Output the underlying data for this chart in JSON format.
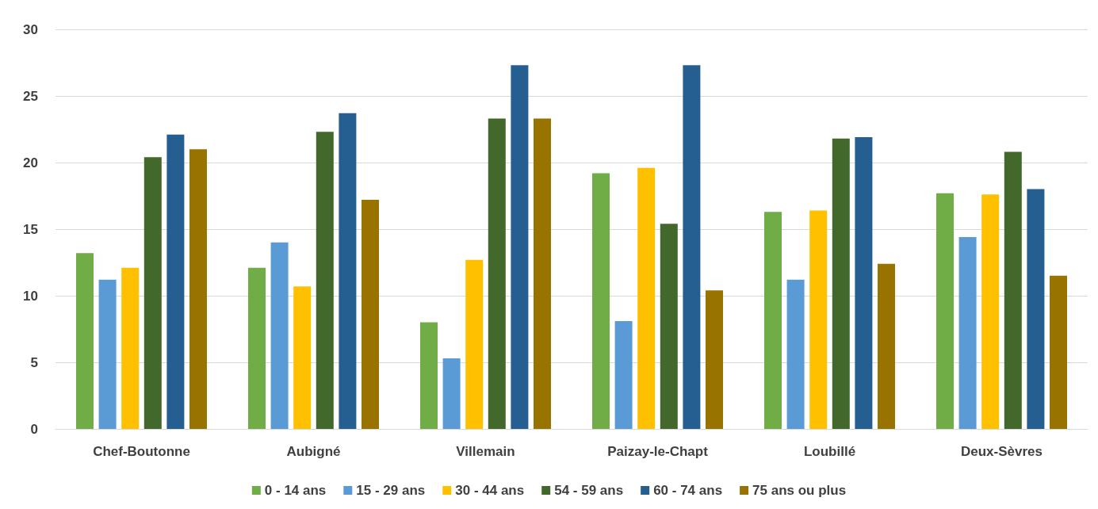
{
  "chart_data": {
    "type": "bar",
    "categories": [
      "Chef-Boutonne",
      "Aubigné",
      "Villemain",
      "Paizay-le-Chapt",
      "Loubillé",
      "Deux-Sèvres"
    ],
    "series": [
      {
        "name": "0 - 14 ans",
        "color": "#70ad47",
        "values": [
          13.2,
          12.1,
          8.0,
          19.2,
          16.3,
          17.7
        ]
      },
      {
        "name": "15 - 29 ans",
        "color": "#5b9bd5",
        "values": [
          11.2,
          14.0,
          5.3,
          8.1,
          11.2,
          14.4
        ]
      },
      {
        "name": "30 - 44 ans",
        "color": "#ffc000",
        "values": [
          12.1,
          10.7,
          12.7,
          19.6,
          16.4,
          17.6
        ]
      },
      {
        "name": "54 - 59 ans",
        "color": "#43682b",
        "values": [
          20.4,
          22.3,
          23.3,
          15.4,
          21.8,
          20.8
        ]
      },
      {
        "name": "60 - 74 ans",
        "color": "#255e91",
        "values": [
          22.1,
          23.7,
          27.3,
          27.3,
          21.9,
          18.0
        ]
      },
      {
        "name": "75 ans ou plus",
        "color": "#997300",
        "values": [
          21.0,
          17.2,
          23.3,
          10.4,
          12.4,
          11.5
        ]
      }
    ],
    "ylim": [
      0,
      30
    ],
    "yticks": [
      0,
      5,
      10,
      15,
      20,
      25,
      30
    ],
    "grid": "y",
    "legend": "bottom"
  }
}
